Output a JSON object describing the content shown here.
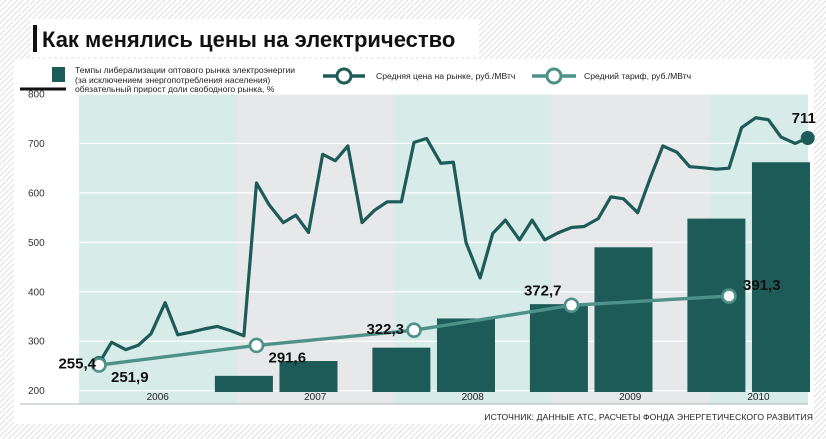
{
  "title": "Как менялись цены на электричество",
  "legend": {
    "bars_line1": "Темпы либерализации оптового рынка электроэнергии",
    "bars_line2": "(за исключением энергопотребления населения)",
    "bars_line3": "обязательный прирост доли свободного рынка, %",
    "market_price": "Средняя цена на рынке, руб./МВтч",
    "tariff": "Средний тариф, руб./МВтч"
  },
  "source": "ИСТОЧНИК: ДАННЫЕ АТС, РАСЧЕТЫ ФОНДА ЭНЕРГЕТИЧЕСКОГО РАЗВИТИЯ",
  "colors": {
    "bar": "#1c5b57",
    "market_line": "#1c5b57",
    "tariff_line": "#4d9189",
    "band_light": "#d7ebe8",
    "band_grey": "#e7e8e9",
    "grid": "#ffffff"
  },
  "chart_data": {
    "type": "line",
    "x_type": "time",
    "years": [
      "2006",
      "2007",
      "2008",
      "2009",
      "2010"
    ],
    "x_range": [
      2006.0,
      2011.0
    ],
    "y_axis": {
      "ticks": [
        "200",
        "300",
        "400",
        "500",
        "600",
        "700",
        "800"
      ],
      "ylim": [
        180,
        830
      ]
    },
    "series": [
      {
        "name": "Средняя цена на рынке, руб./МВтч",
        "style": "line",
        "points": [
          [
            2006.0,
            255.4
          ],
          [
            2006.08,
            298
          ],
          [
            2006.17,
            283
          ],
          [
            2006.25,
            292
          ],
          [
            2006.33,
            315
          ],
          [
            2006.42,
            378
          ],
          [
            2006.5,
            313
          ],
          [
            2006.58,
            318
          ],
          [
            2006.67,
            325
          ],
          [
            2006.75,
            330
          ],
          [
            2006.83,
            322
          ],
          [
            2006.92,
            311
          ],
          [
            2007.0,
            620
          ],
          [
            2007.08,
            576
          ],
          [
            2007.17,
            540
          ],
          [
            2007.25,
            555
          ],
          [
            2007.33,
            520
          ],
          [
            2007.42,
            678
          ],
          [
            2007.5,
            665
          ],
          [
            2007.58,
            695
          ],
          [
            2007.67,
            540
          ],
          [
            2007.75,
            565
          ],
          [
            2007.83,
            582
          ],
          [
            2007.92,
            582
          ],
          [
            2008.0,
            702
          ],
          [
            2008.08,
            710
          ],
          [
            2008.17,
            660
          ],
          [
            2008.25,
            662
          ],
          [
            2008.33,
            500
          ],
          [
            2008.42,
            428
          ],
          [
            2008.5,
            518
          ],
          [
            2008.58,
            545
          ],
          [
            2008.67,
            505
          ],
          [
            2008.75,
            545
          ],
          [
            2008.83,
            505
          ],
          [
            2008.92,
            520
          ],
          [
            2009.0,
            530
          ],
          [
            2009.08,
            532
          ],
          [
            2009.17,
            548
          ],
          [
            2009.25,
            592
          ],
          [
            2009.33,
            588
          ],
          [
            2009.42,
            560
          ],
          [
            2009.5,
            630
          ],
          [
            2009.58,
            695
          ],
          [
            2009.67,
            682
          ],
          [
            2009.75,
            653
          ],
          [
            2009.83,
            651
          ],
          [
            2009.92,
            648
          ],
          [
            2010.0,
            650
          ],
          [
            2010.08,
            732
          ],
          [
            2010.17,
            752
          ],
          [
            2010.25,
            748
          ],
          [
            2010.33,
            713
          ],
          [
            2010.42,
            700
          ],
          [
            2010.5,
            711
          ]
        ]
      },
      {
        "name": "Средний тариф, руб./МВтч",
        "style": "line-markers",
        "points": [
          [
            2006.0,
            251.9
          ],
          [
            2007.0,
            291.6
          ],
          [
            2008.0,
            322.3
          ],
          [
            2009.0,
            372.7
          ],
          [
            2010.0,
            391.3
          ]
        ]
      },
      {
        "name": "Темпы либерализации оптового рынка электроэнергии (за исключением энергопотребления населения) обязательный прирост доли свободного рынка, %",
        "style": "bar",
        "bars": [
          [
            2006.92,
            230
          ],
          [
            2007.33,
            260
          ],
          [
            2007.92,
            287
          ],
          [
            2008.33,
            346
          ],
          [
            2008.92,
            375
          ],
          [
            2009.33,
            490
          ],
          [
            2009.92,
            548
          ],
          [
            2010.33,
            662
          ]
        ]
      }
    ],
    "data_labels": [
      {
        "text": "255,4",
        "series": 0,
        "x": 2006.0,
        "y": 255.4
      },
      {
        "text": "251,9",
        "series": 1,
        "x": 2006.0,
        "y": 251.9
      },
      {
        "text": "291,6",
        "series": 1,
        "x": 2007.0,
        "y": 291.6
      },
      {
        "text": "322,3",
        "series": 1,
        "x": 2008.0,
        "y": 322.3
      },
      {
        "text": "372,7",
        "series": 1,
        "x": 2009.0,
        "y": 372.7
      },
      {
        "text": "391,3",
        "series": 1,
        "x": 2010.0,
        "y": 391.3
      },
      {
        "text": "711",
        "series": 0,
        "x": 2010.5,
        "y": 711
      }
    ],
    "grid": true
  }
}
